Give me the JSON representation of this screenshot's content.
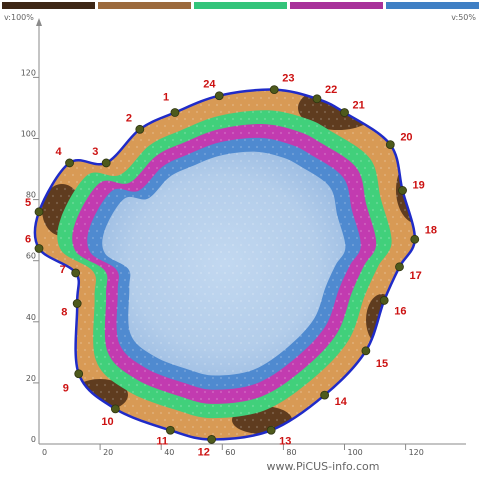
{
  "window": {
    "corner_left": "v:100%",
    "corner_right": "v:50%",
    "footer_text": "www.PiCUS-info.com"
  },
  "legend": {
    "swatches": [
      {
        "name": "dark-brown",
        "color": "#3d2615"
      },
      {
        "name": "medium-brown",
        "color": "#9c6a3c"
      },
      {
        "name": "green",
        "color": "#33c47a"
      },
      {
        "name": "magenta",
        "color": "#a8319a"
      },
      {
        "name": "blue",
        "color": "#3f7fc4"
      }
    ]
  },
  "colors": {
    "outline": "#1f2bc8",
    "point_marker": "#4e5a1c",
    "point_label": "#cc1111",
    "axis": "#8a8a8a",
    "core_fill": "#b7d0ec",
    "inner_blue": "#4f8ad0",
    "magenta": "#c23bb0",
    "green": "#41d07b",
    "light_brown": "#d89a55",
    "dark_brown": "#4a2c16"
  },
  "axes": {
    "x_ticks": [
      "0",
      "20",
      "40",
      "60",
      "80",
      "100",
      "120"
    ],
    "y_ticks": [
      "0",
      "20",
      "40",
      "60",
      "80",
      "100",
      "120"
    ],
    "x_range": [
      0,
      130
    ],
    "y_range": [
      0,
      130
    ]
  },
  "chart_data": {
    "type": "scatter",
    "series": [
      {
        "name": "",
        "points": [
          {
            "label": "1",
            "x": 44.5,
            "y": 108.5
          },
          {
            "label": "2",
            "x": 33,
            "y": 103
          },
          {
            "label": "3",
            "x": 22,
            "y": 92
          },
          {
            "label": "4",
            "x": 10,
            "y": 92
          },
          {
            "label": "5",
            "x": 0,
            "y": 76
          },
          {
            "label": "6",
            "x": 0,
            "y": 64
          },
          {
            "label": "7",
            "x": 12,
            "y": 56
          },
          {
            "label": "8",
            "x": 12.5,
            "y": 46
          },
          {
            "label": "9",
            "x": 13,
            "y": 23
          },
          {
            "label": "10",
            "x": 25,
            "y": 11.5
          },
          {
            "label": "11",
            "x": 43,
            "y": 4.5
          },
          {
            "label": "12",
            "x": 56.5,
            "y": 1.5
          },
          {
            "label": "13",
            "x": 76,
            "y": 4.5
          },
          {
            "label": "14",
            "x": 93.5,
            "y": 16
          },
          {
            "label": "15",
            "x": 107,
            "y": 30.5
          },
          {
            "label": "16",
            "x": 113,
            "y": 47
          },
          {
            "label": "17",
            "x": 118,
            "y": 58
          },
          {
            "label": "18",
            "x": 123,
            "y": 67
          },
          {
            "label": "19",
            "x": 119,
            "y": 83
          },
          {
            "label": "20",
            "x": 115,
            "y": 98
          },
          {
            "label": "21",
            "x": 100,
            "y": 108.5
          },
          {
            "label": "22",
            "x": 91,
            "y": 113
          },
          {
            "label": "23",
            "x": 77,
            "y": 116
          },
          {
            "label": "24",
            "x": 59,
            "y": 114
          }
        ]
      }
    ],
    "xlim": [
      0,
      130
    ],
    "ylim": [
      0,
      130
    ],
    "grid": false
  }
}
